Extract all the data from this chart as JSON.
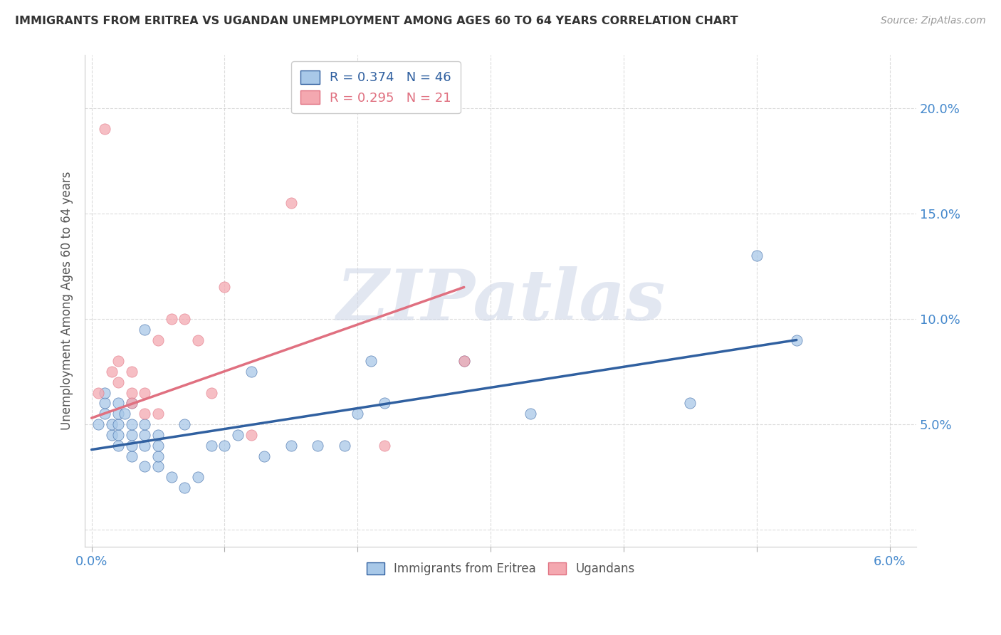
{
  "title": "IMMIGRANTS FROM ERITREA VS UGANDAN UNEMPLOYMENT AMONG AGES 60 TO 64 YEARS CORRELATION CHART",
  "source": "Source: ZipAtlas.com",
  "ylabel": "Unemployment Among Ages 60 to 64 years",
  "xlim": [
    -0.0005,
    0.062
  ],
  "ylim": [
    -0.008,
    0.225
  ],
  "xtick_positions": [
    0.0,
    0.01,
    0.02,
    0.03,
    0.04,
    0.05,
    0.06
  ],
  "xtick_labels": [
    "0.0%",
    "",
    "",
    "",
    "",
    "",
    "6.0%"
  ],
  "ytick_positions": [
    0.0,
    0.05,
    0.1,
    0.15,
    0.2
  ],
  "ytick_labels_right": [
    "",
    "5.0%",
    "10.0%",
    "15.0%",
    "20.0%"
  ],
  "blue_scatter_color": "#a8c8e8",
  "pink_scatter_color": "#f4a8b0",
  "blue_line_color": "#3060a0",
  "pink_line_color": "#e07080",
  "legend_r1": "R = 0.374",
  "legend_n1": "N = 46",
  "legend_r2": "R = 0.295",
  "legend_n2": "N = 21",
  "blue_scatter_x": [
    0.0005,
    0.001,
    0.001,
    0.001,
    0.0015,
    0.0015,
    0.002,
    0.002,
    0.002,
    0.002,
    0.002,
    0.0025,
    0.003,
    0.003,
    0.003,
    0.003,
    0.003,
    0.004,
    0.004,
    0.004,
    0.004,
    0.004,
    0.005,
    0.005,
    0.005,
    0.005,
    0.006,
    0.007,
    0.007,
    0.008,
    0.009,
    0.01,
    0.011,
    0.012,
    0.013,
    0.015,
    0.017,
    0.02,
    0.022,
    0.028,
    0.033,
    0.045,
    0.05,
    0.053,
    0.019,
    0.021
  ],
  "blue_scatter_y": [
    0.05,
    0.055,
    0.06,
    0.065,
    0.045,
    0.05,
    0.04,
    0.045,
    0.05,
    0.055,
    0.06,
    0.055,
    0.035,
    0.04,
    0.045,
    0.05,
    0.06,
    0.03,
    0.04,
    0.045,
    0.05,
    0.095,
    0.03,
    0.035,
    0.04,
    0.045,
    0.025,
    0.02,
    0.05,
    0.025,
    0.04,
    0.04,
    0.045,
    0.075,
    0.035,
    0.04,
    0.04,
    0.055,
    0.06,
    0.08,
    0.055,
    0.06,
    0.13,
    0.09,
    0.04,
    0.08
  ],
  "pink_scatter_x": [
    0.0005,
    0.001,
    0.0015,
    0.002,
    0.002,
    0.003,
    0.003,
    0.003,
    0.004,
    0.004,
    0.005,
    0.005,
    0.006,
    0.007,
    0.008,
    0.009,
    0.01,
    0.012,
    0.015,
    0.022,
    0.028
  ],
  "pink_scatter_y": [
    0.065,
    0.19,
    0.075,
    0.07,
    0.08,
    0.06,
    0.065,
    0.075,
    0.055,
    0.065,
    0.055,
    0.09,
    0.1,
    0.1,
    0.09,
    0.065,
    0.115,
    0.045,
    0.155,
    0.04,
    0.08
  ],
  "blue_trendline_x": [
    0.0,
    0.053
  ],
  "blue_trendline_y": [
    0.038,
    0.09
  ],
  "pink_trendline_x": [
    0.0,
    0.028
  ],
  "pink_trendline_y": [
    0.053,
    0.115
  ],
  "watermark_text": "ZIPatlas",
  "watermark_color": "#d0d8e8",
  "background_color": "#ffffff",
  "grid_color": "#cccccc",
  "tick_label_color": "#4488cc",
  "ylabel_color": "#555555",
  "title_color": "#333333"
}
